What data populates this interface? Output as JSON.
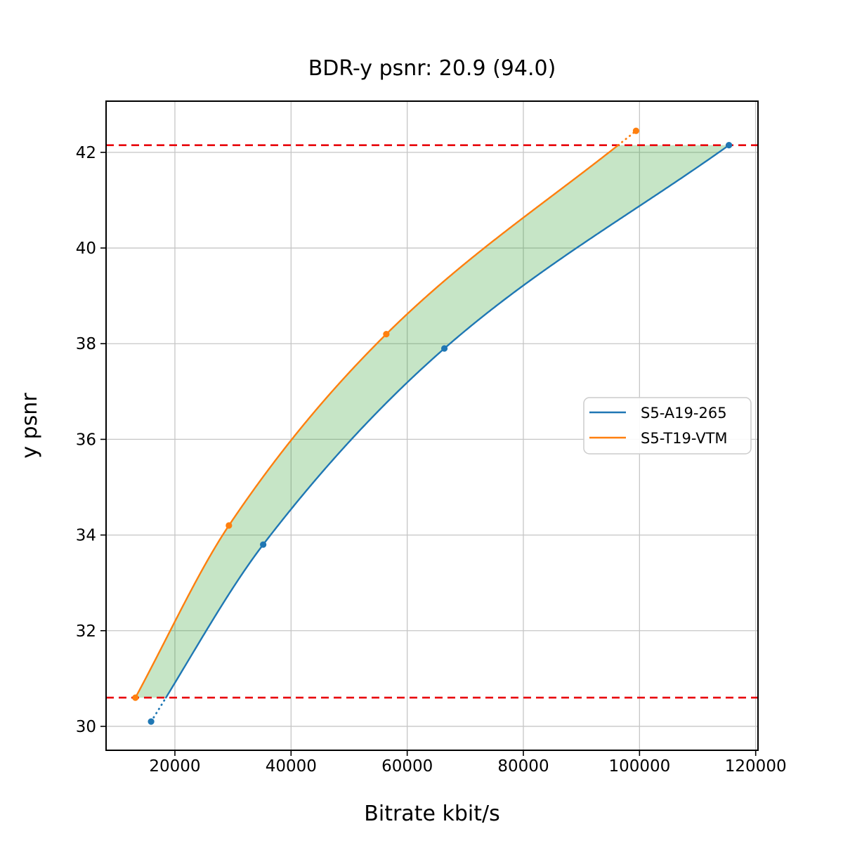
{
  "chart_data": {
    "type": "line",
    "title": "BDR-y psnr: 20.9 (94.0)",
    "xlabel": "Bitrate kbit/s",
    "ylabel": "y psnr",
    "xlim": [
      8150,
      120400
    ],
    "ylim": [
      29.5,
      43.07
    ],
    "xticks": [
      20000,
      40000,
      60000,
      80000,
      100000,
      120000
    ],
    "yticks": [
      30,
      32,
      34,
      36,
      38,
      40,
      42
    ],
    "grid": true,
    "grid_color": "#c6c6c6",
    "spine_color": "#000000",
    "legend_position": "center-right",
    "series": [
      {
        "name": "S5-A19-265",
        "color": "#1f77b4",
        "points": [
          [
            15900,
            30.1
          ],
          [
            35200,
            33.8
          ],
          [
            66400,
            37.9
          ],
          [
            115400,
            42.15
          ]
        ]
      },
      {
        "name": "S5-T19-VTM",
        "color": "#ff7f0e",
        "points": [
          [
            13200,
            30.6
          ],
          [
            29300,
            34.2
          ],
          [
            56400,
            38.2
          ],
          [
            99400,
            42.45
          ]
        ]
      }
    ],
    "overlap_bounds": {
      "lower": 30.6,
      "upper": 42.15,
      "line_color": "#e8000b",
      "line_style": "dashed"
    },
    "fill_between": {
      "color": "#2ca02c",
      "opacity": 0.27
    }
  }
}
